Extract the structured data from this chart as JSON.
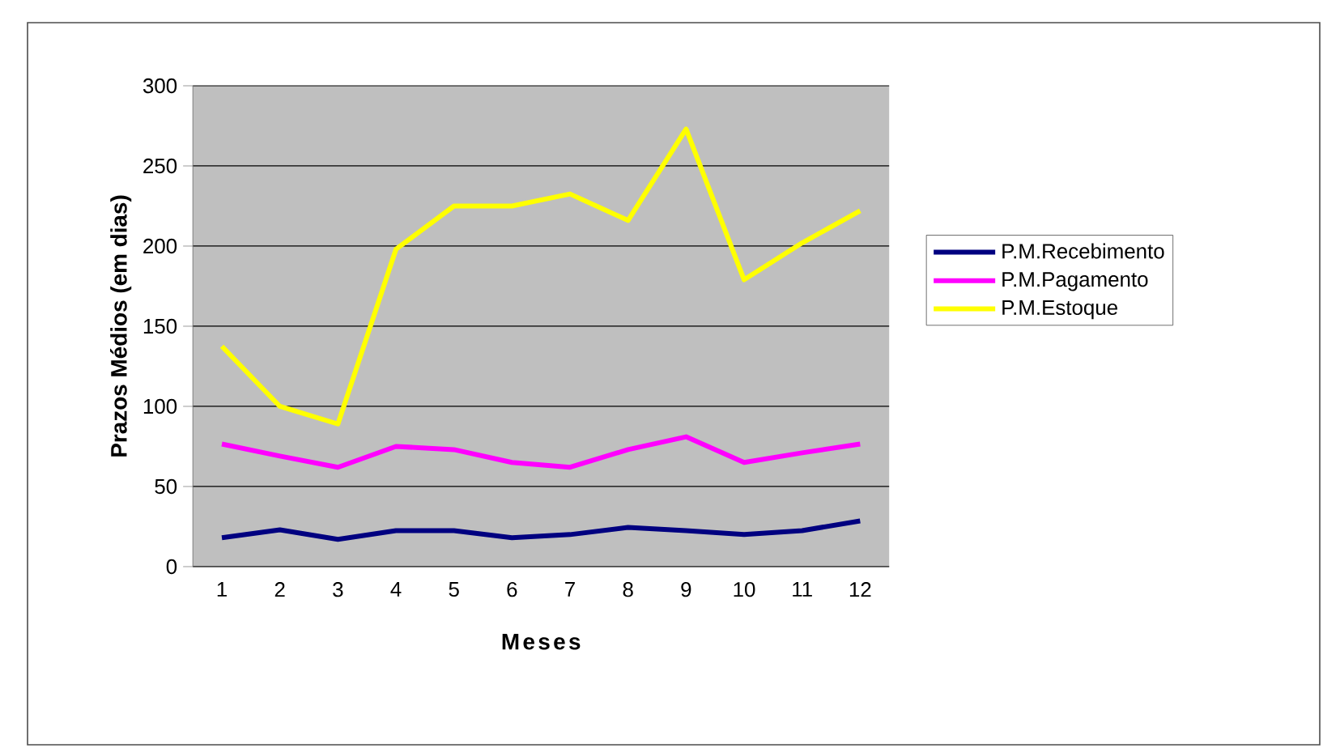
{
  "chart_data": {
    "type": "line",
    "xlabel": "Meses",
    "ylabel": "Prazos Médios (em dias)",
    "categories": [
      "1",
      "2",
      "3",
      "4",
      "5",
      "6",
      "7",
      "8",
      "9",
      "10",
      "11",
      "12"
    ],
    "series": [
      {
        "name": "P.M.Recebimento",
        "color": "#000080",
        "values": [
          18,
          23,
          17,
          22.5,
          22.5,
          18,
          20,
          24.5,
          22.5,
          20,
          22.5,
          28.5
        ]
      },
      {
        "name": "P.M.Pagamento",
        "color": "#ff00ff",
        "values": [
          76.5,
          69,
          62,
          75,
          73,
          65,
          62,
          73,
          81,
          65,
          71,
          76.5
        ]
      },
      {
        "name": "P.M.Estoque",
        "color": "#ffff00",
        "values": [
          137.5,
          100,
          89,
          198,
          225,
          225,
          232.5,
          216,
          273,
          179,
          202,
          222
        ]
      }
    ],
    "ylim": [
      0,
      300
    ],
    "yticks": [
      0,
      50,
      100,
      150,
      200,
      250,
      300
    ],
    "grid": "y",
    "legend": "right"
  }
}
